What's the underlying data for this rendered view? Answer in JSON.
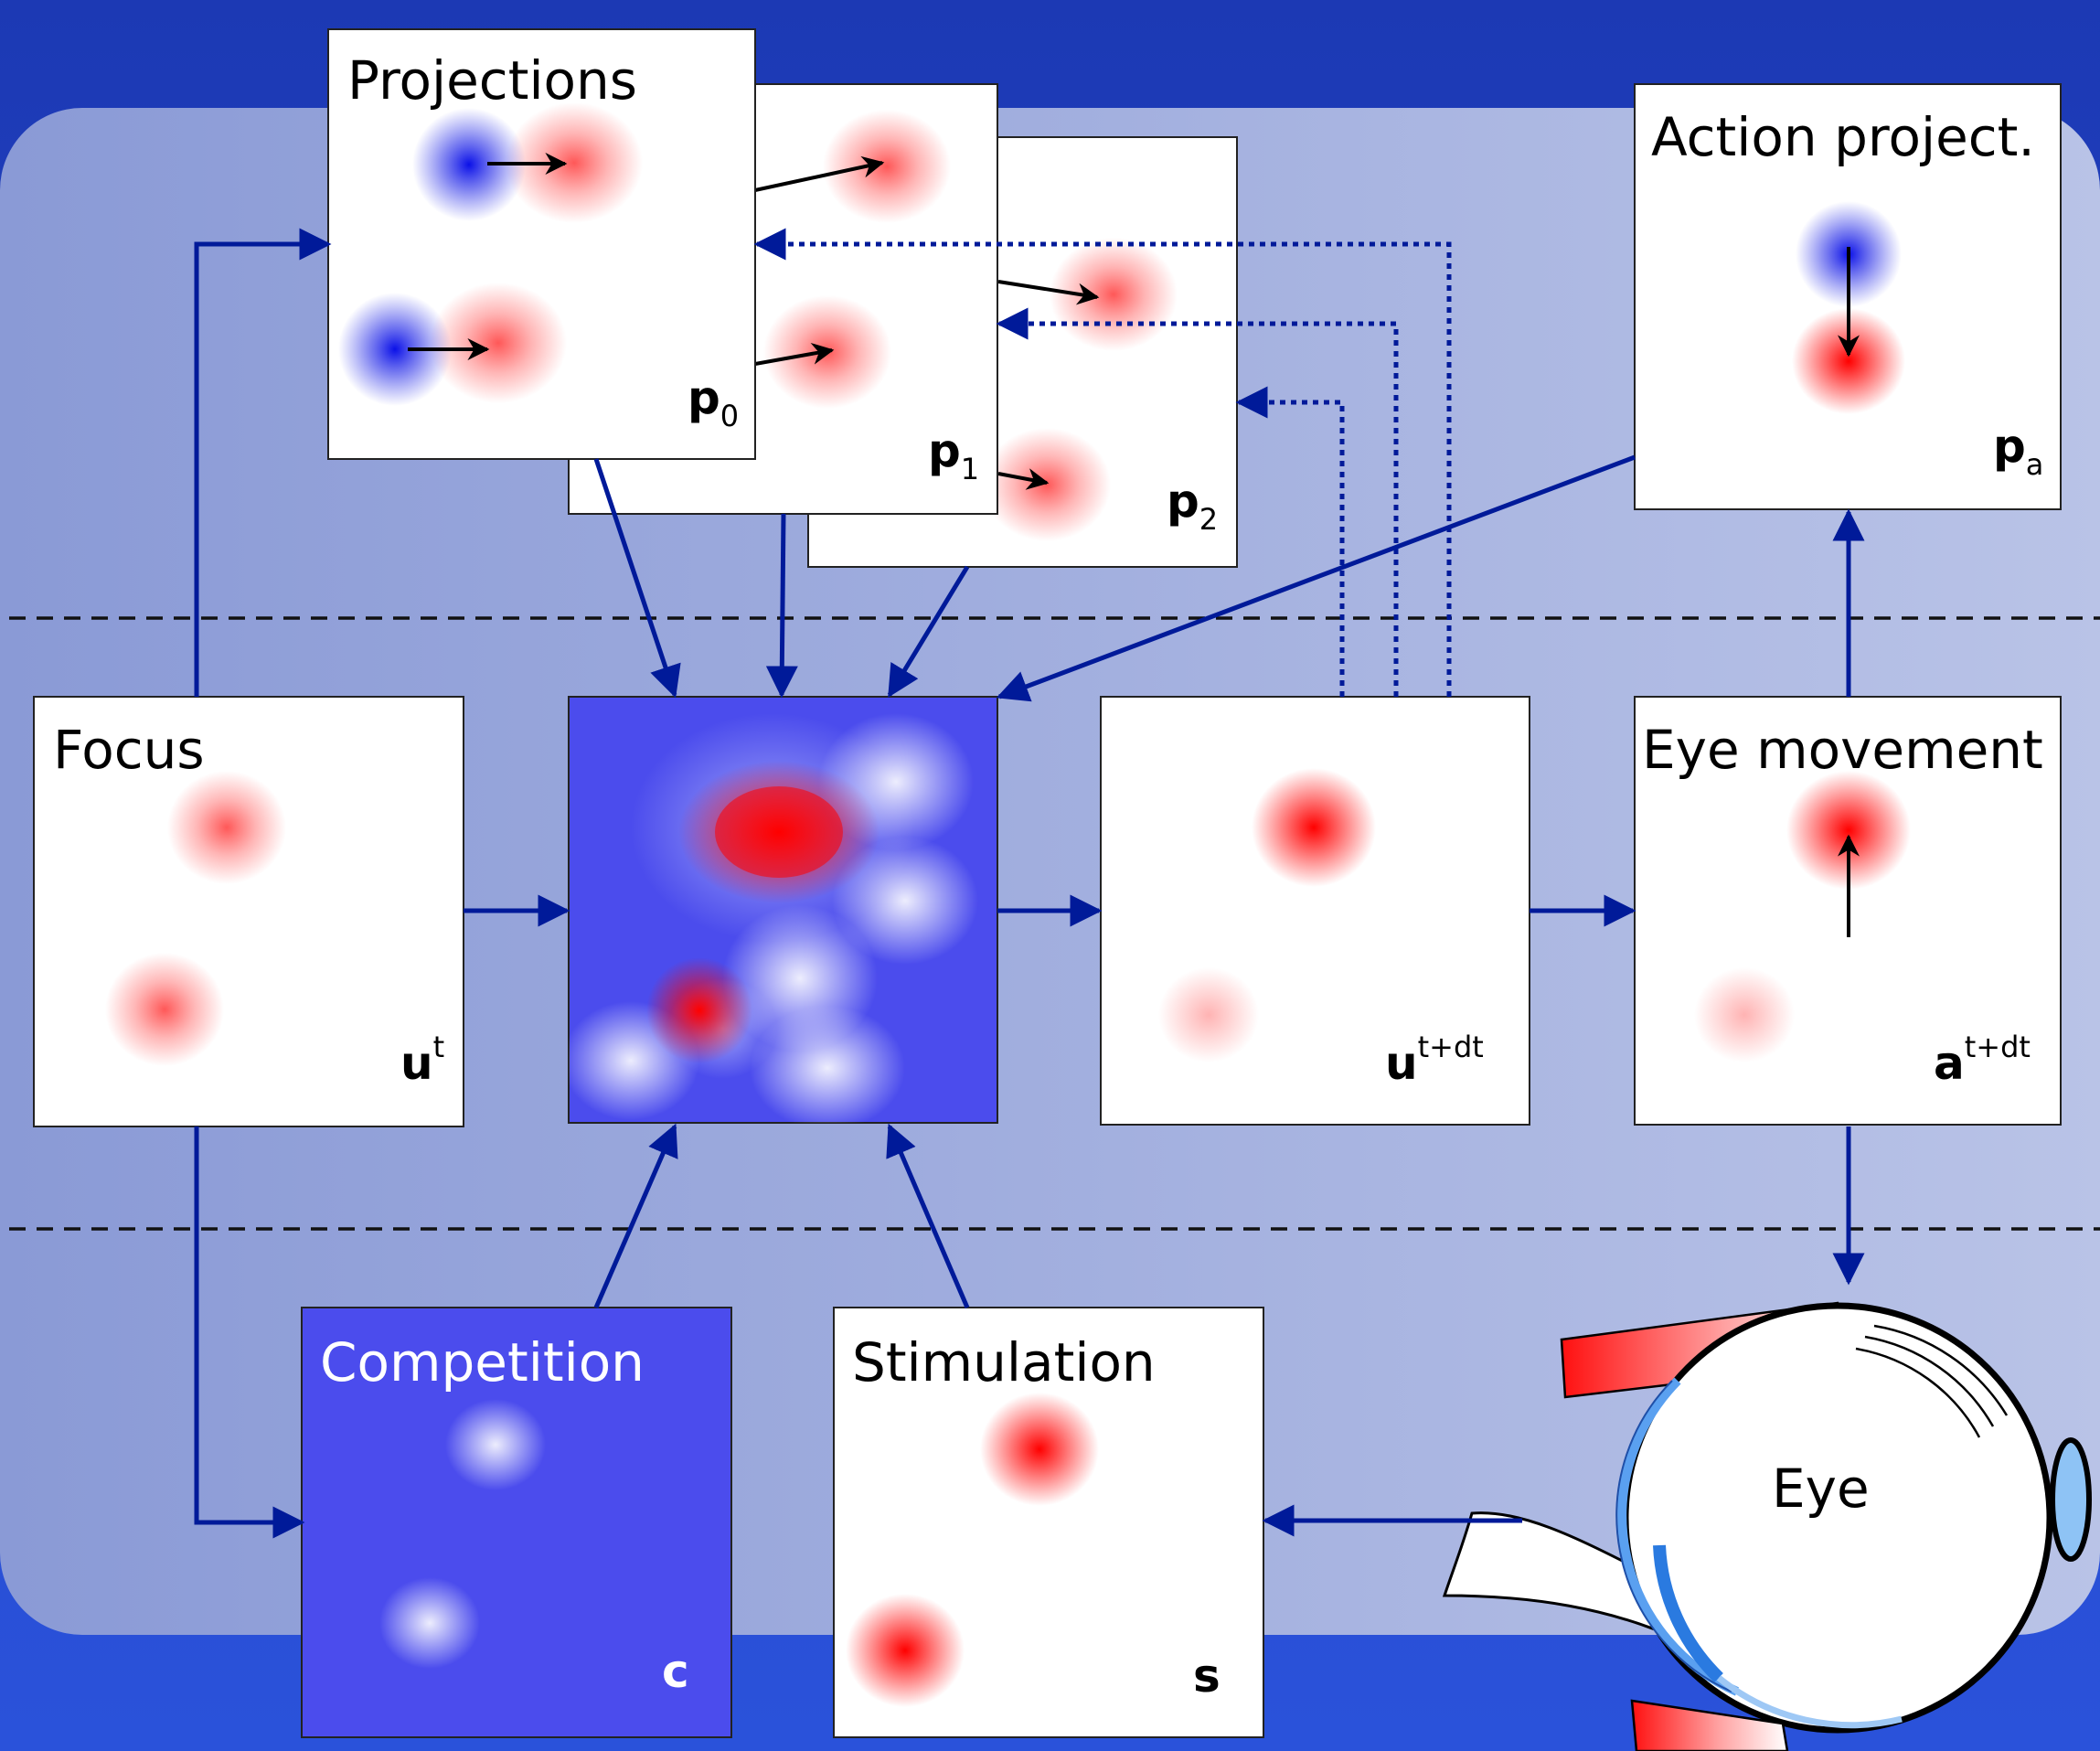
{
  "colors": {
    "background_top": "#1e3bb5",
    "background_bottom": "#2a50d8",
    "panel_left": "#8b9bd6",
    "panel_right": "#b7c1e6",
    "arrow": "#001a99",
    "activation": "#ff0000",
    "inhibition": "#0a14e0",
    "field_blue": "#4a4aec"
  },
  "labels": {
    "projections": {
      "title": "Projections"
    },
    "p0": {
      "sym": "p",
      "sub": "0"
    },
    "p1": {
      "sym": "p",
      "sub": "1"
    },
    "p2": {
      "sym": "p",
      "sub": "2"
    },
    "action": {
      "title": "Action project.",
      "sym": "p",
      "sub": "a"
    },
    "focus": {
      "title": "Focus",
      "sym": "u",
      "sup": "t"
    },
    "next": {
      "sym": "u",
      "sup": "t+dt"
    },
    "eye_movement": {
      "title": "Eye movement",
      "sym": "a",
      "sup": "t+dt"
    },
    "competition": {
      "title": "Competition",
      "sym": "c"
    },
    "stimulation": {
      "title": "Stimulation",
      "sym": "s"
    },
    "eye": {
      "title": "Eye"
    }
  }
}
